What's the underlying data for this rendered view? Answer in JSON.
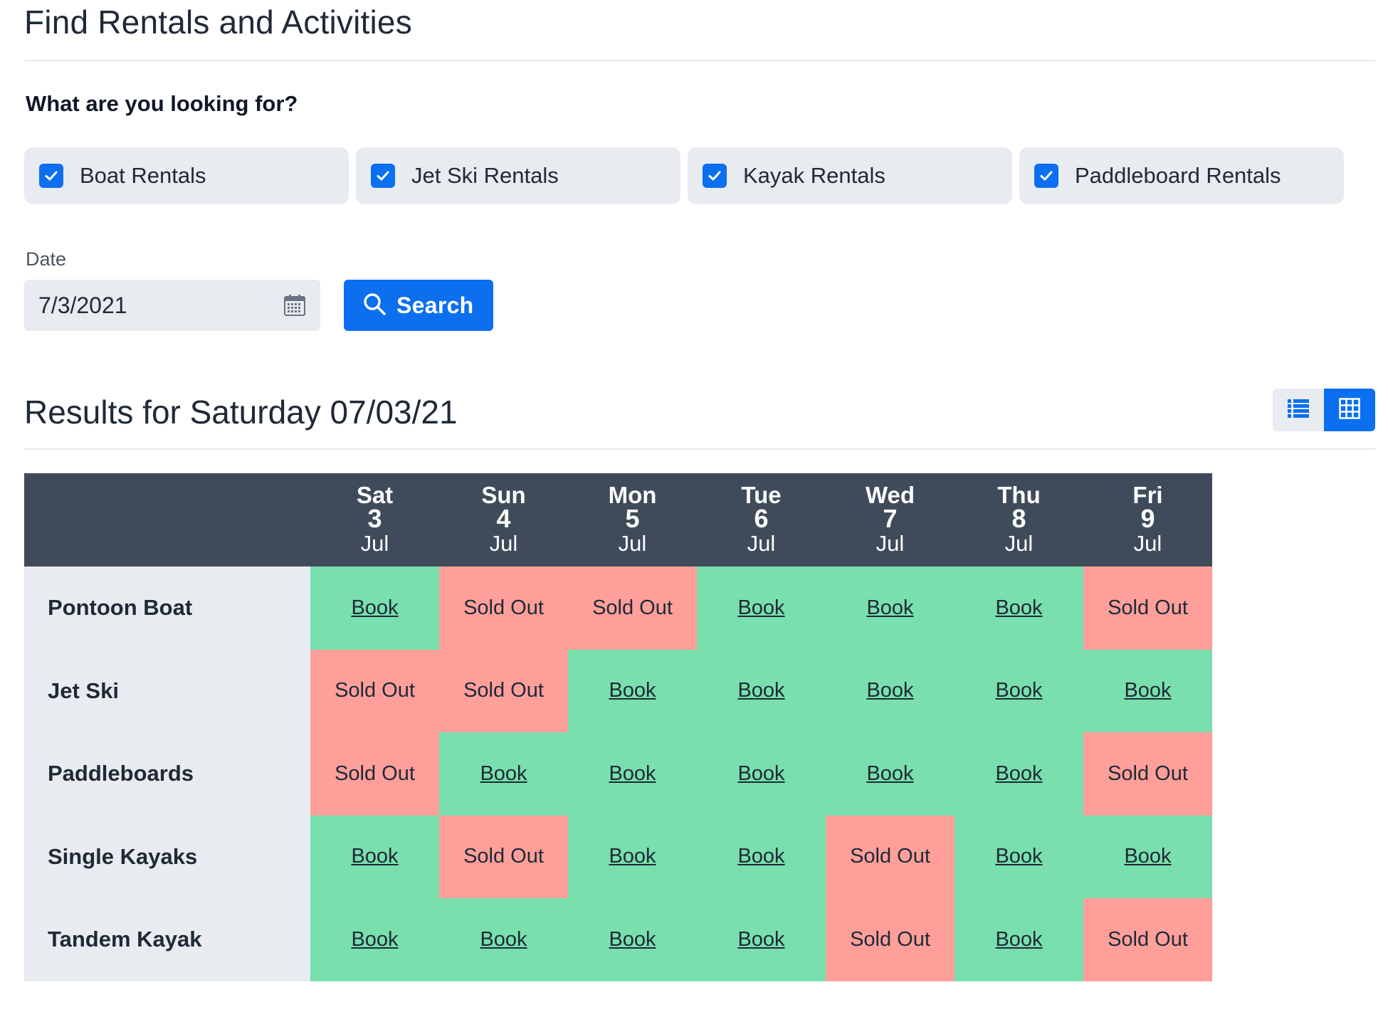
{
  "page": {
    "title": "Find Rentals and Activities"
  },
  "filters": {
    "question": "What are you looking for?",
    "options": [
      {
        "label": "Boat Rentals",
        "checked": true
      },
      {
        "label": "Jet Ski Rentals",
        "checked": true
      },
      {
        "label": "Kayak Rentals",
        "checked": true
      },
      {
        "label": "Paddleboard Rentals",
        "checked": true
      }
    ],
    "date_label": "Date",
    "date_value": "7/3/2021",
    "search_label": "Search"
  },
  "results": {
    "title": "Results for Saturday 07/03/21",
    "view_mode": "grid",
    "days": [
      {
        "name": "Sat",
        "num": "3",
        "month": "Jul"
      },
      {
        "name": "Sun",
        "num": "4",
        "month": "Jul"
      },
      {
        "name": "Mon",
        "num": "5",
        "month": "Jul"
      },
      {
        "name": "Tue",
        "num": "6",
        "month": "Jul"
      },
      {
        "name": "Wed",
        "num": "7",
        "month": "Jul"
      },
      {
        "name": "Thu",
        "num": "8",
        "month": "Jul"
      },
      {
        "name": "Fri",
        "num": "9",
        "month": "Jul"
      }
    ],
    "rows": [
      {
        "name": "Pontoon Boat",
        "cells": [
          "Book",
          "Sold Out",
          "Sold Out",
          "Book",
          "Book",
          "Book",
          "Sold Out"
        ]
      },
      {
        "name": "Jet Ski",
        "cells": [
          "Sold Out",
          "Sold Out",
          "Book",
          "Book",
          "Book",
          "Book",
          "Book"
        ]
      },
      {
        "name": "Paddleboards",
        "cells": [
          "Sold Out",
          "Book",
          "Book",
          "Book",
          "Book",
          "Book",
          "Sold Out"
        ]
      },
      {
        "name": "Single Kayaks",
        "cells": [
          "Book",
          "Sold Out",
          "Book",
          "Book",
          "Sold Out",
          "Book",
          "Book"
        ]
      },
      {
        "name": "Tandem Kayak",
        "cells": [
          "Book",
          "Book",
          "Book",
          "Book",
          "Sold Out",
          "Book",
          "Sold Out"
        ]
      }
    ]
  },
  "colors": {
    "accent": "#0b6ff0",
    "available": "#79dfad",
    "sold_out": "#fe9f9a",
    "header_dark": "#3f4a5a",
    "light_gray": "#e8ebef"
  }
}
